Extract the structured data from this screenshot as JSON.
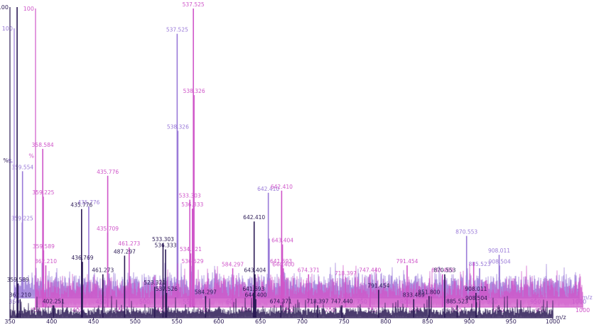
{
  "chart_data": {
    "type": "line",
    "subtype": "stacked mass spectra (3 offset traces)",
    "xlabel": "m/z",
    "ylabel_max": "100",
    "ylabel_unit": "%",
    "colors": {
      "front": "#2b1a55",
      "middle": "#cf56c9",
      "back": "#9a7ad8"
    },
    "series": [
      {
        "id": "back",
        "xrange": [
          350,
          1000
        ],
        "xticks": [
          350,
          400,
          450,
          500,
          550,
          600,
          650,
          700,
          750,
          800,
          850,
          900,
          950,
          1000
        ],
        "baseline": 5.5,
        "noise": 2.2,
        "peaks": [
          {
            "mz": 359.554,
            "y": 47,
            "label": "359.554"
          },
          {
            "mz": 359.225,
            "y": 28,
            "label": "359.225"
          },
          {
            "mz": 382.21,
            "y": 13,
            "label": ""
          },
          {
            "mz": 435.776,
            "y": 34,
            "label": "435.776"
          },
          {
            "mz": 537.525,
            "y": 98,
            "label": "537.525"
          },
          {
            "mz": 538.326,
            "y": 62,
            "label": "538.326"
          },
          {
            "mz": 642.41,
            "y": 39,
            "label": "642.410"
          },
          {
            "mz": 643.404,
            "y": 22,
            "label": ""
          },
          {
            "mz": 870.553,
            "y": 23,
            "label": "870.553"
          },
          {
            "mz": 908.011,
            "y": 16,
            "label": "908.011"
          },
          {
            "mz": 908.504,
            "y": 12,
            "label": "908.504"
          },
          {
            "mz": 885.523,
            "y": 11,
            "label": "885.523"
          }
        ]
      },
      {
        "id": "middle",
        "xrange": [
          350,
          1000
        ],
        "xticks": [
          350,
          400,
          450,
          500,
          550,
          600,
          650,
          700,
          750,
          800,
          850,
          900,
          950,
          1000
        ],
        "baseline": 6,
        "noise": 2.5,
        "peaks": [
          {
            "mz": 358.584,
            "y": 53,
            "label": "358.584"
          },
          {
            "mz": 359.225,
            "y": 37,
            "label": "359.225"
          },
          {
            "mz": 359.589,
            "y": 19,
            "label": "359.589"
          },
          {
            "mz": 362.21,
            "y": 14,
            "label": "362.210"
          },
          {
            "mz": 435.776,
            "y": 44,
            "label": "435.776"
          },
          {
            "mz": 435.709,
            "y": 25,
            "label": "435.709"
          },
          {
            "mz": 461.273,
            "y": 20,
            "label": "461.273"
          },
          {
            "mz": 537.525,
            "y": 100,
            "label": "537.525"
          },
          {
            "mz": 538.326,
            "y": 71,
            "label": "538.326"
          },
          {
            "mz": 533.303,
            "y": 36,
            "label": "533.303"
          },
          {
            "mz": 536.333,
            "y": 33,
            "label": "536.333"
          },
          {
            "mz": 534.321,
            "y": 18,
            "label": "534.321"
          },
          {
            "mz": 536.529,
            "y": 14,
            "label": "536.529"
          },
          {
            "mz": 584.297,
            "y": 13,
            "label": "584.297"
          },
          {
            "mz": 642.41,
            "y": 39,
            "label": "642.410"
          },
          {
            "mz": 643.404,
            "y": 21,
            "label": "643.404"
          },
          {
            "mz": 641.693,
            "y": 14,
            "label": "641.693"
          },
          {
            "mz": 644.4,
            "y": 13,
            "label": "644.400"
          },
          {
            "mz": 674.371,
            "y": 11,
            "label": "674.371"
          },
          {
            "mz": 718.397,
            "y": 10,
            "label": "718.397"
          },
          {
            "mz": 747.44,
            "y": 11,
            "label": "747.440"
          },
          {
            "mz": 791.454,
            "y": 14,
            "label": "791.454"
          },
          {
            "mz": 833.469,
            "y": 11,
            "label": "833.469"
          },
          {
            "mz": 870.553,
            "y": 15,
            "label": ""
          }
        ]
      },
      {
        "id": "front",
        "xrange": [
          350,
          1000
        ],
        "xticks": [
          350,
          400,
          450,
          500,
          550,
          600,
          650,
          700,
          750,
          800,
          850,
          900,
          950,
          1000
        ],
        "baseline": 1.5,
        "noise": 1.8,
        "peaks": [
          {
            "mz": 358.584,
            "y": 100,
            "label": ""
          },
          {
            "mz": 359.589,
            "y": 11,
            "label": "359.589"
          },
          {
            "mz": 362.21,
            "y": 6,
            "label": "362.210"
          },
          {
            "mz": 402.251,
            "y": 4,
            "label": "402.251"
          },
          {
            "mz": 435.776,
            "y": 35,
            "label": "435.776"
          },
          {
            "mz": 436.769,
            "y": 18,
            "label": "436.769"
          },
          {
            "mz": 461.273,
            "y": 14,
            "label": "461.273"
          },
          {
            "mz": 487.297,
            "y": 20,
            "label": "487.297"
          },
          {
            "mz": 523.321,
            "y": 10,
            "label": "523.321"
          },
          {
            "mz": 533.303,
            "y": 24,
            "label": "533.303"
          },
          {
            "mz": 536.333,
            "y": 22,
            "label": "536.333"
          },
          {
            "mz": 537.526,
            "y": 8,
            "label": "537.526"
          },
          {
            "mz": 584.297,
            "y": 7,
            "label": "584.297"
          },
          {
            "mz": 642.41,
            "y": 31,
            "label": "642.410"
          },
          {
            "mz": 643.404,
            "y": 14,
            "label": "643.404"
          },
          {
            "mz": 641.693,
            "y": 8,
            "label": "641.693"
          },
          {
            "mz": 644.4,
            "y": 6,
            "label": "644.400"
          },
          {
            "mz": 674.371,
            "y": 4,
            "label": "674.371"
          },
          {
            "mz": 718.397,
            "y": 4,
            "label": "718.397"
          },
          {
            "mz": 747.44,
            "y": 4,
            "label": "747.440"
          },
          {
            "mz": 791.454,
            "y": 9,
            "label": "791.454"
          },
          {
            "mz": 833.469,
            "y": 6,
            "label": "833.469"
          },
          {
            "mz": 851.8,
            "y": 7,
            "label": "851.800"
          },
          {
            "mz": 870.553,
            "y": 14,
            "label": "870.553"
          },
          {
            "mz": 885.523,
            "y": 4,
            "label": "885.523"
          },
          {
            "mz": 908.011,
            "y": 8,
            "label": "908.011"
          },
          {
            "mz": 908.504,
            "y": 5,
            "label": "908.504"
          }
        ]
      }
    ]
  }
}
